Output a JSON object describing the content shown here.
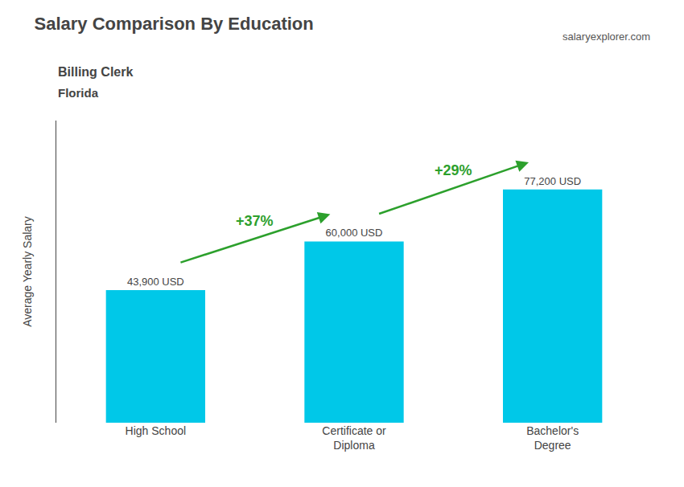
{
  "chart_data": {
    "type": "bar",
    "title": "Salary Comparison By Education",
    "subtitle": [
      "Billing Clerk",
      "Florida"
    ],
    "ylabel": "Average Yearly Salary",
    "categories": [
      "High School",
      "Certificate or\nDiploma",
      "Bachelor's\nDegree"
    ],
    "values": [
      43900,
      60000,
      77200
    ],
    "value_labels": [
      "43,900 USD",
      "60,000 USD",
      "77,200 USD"
    ],
    "data_labels": true,
    "color": "#00c8e8",
    "ylim": [
      0,
      100000
    ],
    "tick_labels": "x",
    "grid": false,
    "annotations": [
      "+37%",
      "+29%",
      "salaryexplorer.com"
    ]
  }
}
